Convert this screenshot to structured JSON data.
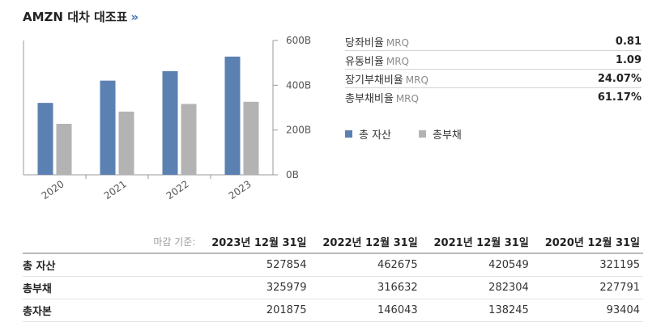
{
  "header": {
    "title": "AMZN 대차 대조표",
    "chevron": "»"
  },
  "chart_data": {
    "type": "bar",
    "categories": [
      "2020",
      "2021",
      "2022",
      "2023"
    ],
    "series": [
      {
        "name": "총 자산",
        "values": [
          321195,
          420549,
          462675,
          527854
        ],
        "color": "#5b80b2"
      },
      {
        "name": "총부채",
        "values": [
          227791,
          282304,
          316632,
          325979
        ],
        "color": "#b3b3b3"
      }
    ],
    "ylim": [
      0,
      600000
    ],
    "yticks": [
      0,
      200000,
      400000,
      600000
    ],
    "ytick_labels": [
      "0B",
      "200B",
      "400B",
      "600B"
    ],
    "axis_side": "right",
    "grid": false,
    "legend": "right"
  },
  "ratios": [
    {
      "name": "당좌비율",
      "tag": "MRQ",
      "value": "0.81"
    },
    {
      "name": "유동비율",
      "tag": "MRQ",
      "value": "1.09"
    },
    {
      "name": "장기부채비율",
      "tag": "MRQ",
      "value": "24.07%"
    },
    {
      "name": "총부채비율",
      "tag": "MRQ",
      "value": "61.17%"
    }
  ],
  "table": {
    "label_header": "마감 기준:",
    "columns": [
      "2023년 12월 31일",
      "2022년 12월 31일",
      "2021년 12월 31일",
      "2020년 12월 31일"
    ],
    "rows": [
      {
        "label": "총 자산",
        "values": [
          "527854",
          "462675",
          "420549",
          "321195"
        ]
      },
      {
        "label": "총부채",
        "values": [
          "325979",
          "316632",
          "282304",
          "227791"
        ]
      },
      {
        "label": "총자본",
        "values": [
          "201875",
          "146043",
          "138245",
          "93404"
        ]
      }
    ]
  }
}
